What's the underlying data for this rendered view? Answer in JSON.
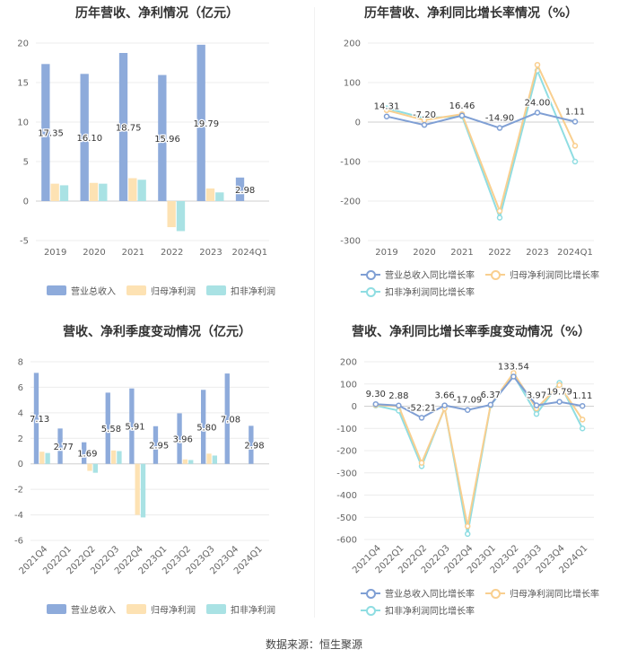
{
  "colors": {
    "revenue": "#8eabdb",
    "net_profit": "#fde2b3",
    "deducted_profit": "#a9e2e4",
    "revenue_line": "#7f9fd4",
    "net_line": "#f9cf8f",
    "deducted_line": "#8fdde2"
  },
  "source": "数据来源：恒生聚源",
  "chart_data": [
    {
      "type": "bar",
      "title": "历年营收、净利情况（亿元）",
      "categories": [
        "2019",
        "2020",
        "2021",
        "2022",
        "2023",
        "2024Q1"
      ],
      "ylim": [
        -5,
        20
      ],
      "yticks": [
        "20",
        "15",
        "10",
        "5",
        "0",
        "-5"
      ],
      "grid": true,
      "legend_position": "bottom",
      "series": [
        {
          "name": "营业总收入",
          "values": [
            17.35,
            16.1,
            18.75,
            15.96,
            19.79,
            2.98
          ],
          "labels": [
            "17.35",
            "16.10",
            "18.75",
            "15.96",
            "19.79",
            "2.98"
          ]
        },
        {
          "name": "归母净利润",
          "values": [
            2.2,
            2.3,
            2.9,
            -3.3,
            1.6,
            0
          ]
        },
        {
          "name": "扣非净利润",
          "values": [
            2.0,
            2.2,
            2.7,
            -3.8,
            1.1,
            0
          ]
        }
      ]
    },
    {
      "type": "line",
      "title": "历年营收、净利同比增长率情况（%）",
      "categories": [
        "2019",
        "2020",
        "2021",
        "2022",
        "2023",
        "2024Q1"
      ],
      "ylim": [
        -300,
        200
      ],
      "yticks": [
        "200",
        "100",
        "0",
        "-100",
        "-200",
        "-300"
      ],
      "grid": true,
      "legend_position": "bottom",
      "series": [
        {
          "name": "营业总收入同比增长率",
          "values": [
            14.31,
            -7.2,
            16.46,
            -14.9,
            24.0,
            1.11
          ],
          "labels": [
            "14.31",
            "-7.20",
            "16.46",
            "-14.90",
            "24.00",
            "1.11"
          ]
        },
        {
          "name": "归母净利润同比增长率",
          "values": [
            30,
            5,
            20,
            -225,
            145,
            -60
          ]
        },
        {
          "name": "扣非净利润同比增长率",
          "values": [
            35,
            10,
            15,
            -242,
            130,
            -100
          ]
        }
      ]
    },
    {
      "type": "bar",
      "title": "营收、净利季度变动情况（亿元）",
      "categories": [
        "2021Q4",
        "2022Q1",
        "2022Q2",
        "2022Q3",
        "2022Q4",
        "2023Q1",
        "2023Q2",
        "2023Q3",
        "2023Q4",
        "2024Q1"
      ],
      "ylim": [
        -6,
        8
      ],
      "yticks": [
        "8",
        "6",
        "4",
        "2",
        "0",
        "-2",
        "-4",
        "-6"
      ],
      "grid": true,
      "legend_position": "bottom",
      "series": [
        {
          "name": "营业总收入",
          "values": [
            7.13,
            2.77,
            1.69,
            5.58,
            5.91,
            2.95,
            3.96,
            5.8,
            7.08,
            2.98
          ],
          "labels": [
            "7.13",
            "2.77",
            "1.69",
            "5.58",
            "5.91",
            "2.95",
            "3.96",
            "5.80",
            "7.08",
            "2.98"
          ]
        },
        {
          "name": "归母净利润",
          "values": [
            0.95,
            0,
            -0.55,
            1.05,
            -4.0,
            0,
            0.35,
            0.8,
            0,
            0
          ]
        },
        {
          "name": "扣非净利润",
          "values": [
            0.85,
            0,
            -0.7,
            1.0,
            -4.2,
            0,
            0.3,
            0.65,
            0,
            0
          ]
        }
      ]
    },
    {
      "type": "line",
      "title": "营收、净利同比增长率季度变动情况（%）",
      "categories": [
        "2021Q4",
        "2022Q1",
        "2022Q2",
        "2022Q3",
        "2022Q4",
        "2023Q1",
        "2023Q2",
        "2023Q3",
        "2023Q4",
        "2024Q1"
      ],
      "ylim": [
        -600,
        200
      ],
      "yticks": [
        "200",
        "100",
        "0",
        "-100",
        "-200",
        "-300",
        "-400",
        "-500",
        "-600"
      ],
      "grid": true,
      "legend_position": "bottom",
      "series": [
        {
          "name": "营业总收入同比增长率",
          "values": [
            9.3,
            2.88,
            -52.21,
            3.66,
            -17.09,
            6.37,
            133.54,
            3.97,
            19.79,
            1.11
          ],
          "labels": [
            "9.30",
            "2.88",
            "-52.21",
            "3.66",
            "-17.09",
            "6.37",
            "133.54",
            "3.97",
            "19.79",
            "1.11"
          ]
        },
        {
          "name": "归母净利润同比增长率",
          "values": [
            5,
            0,
            -255,
            -10,
            -540,
            5,
            150,
            -10,
            95,
            -60
          ]
        },
        {
          "name": "扣非净利润同比增长率",
          "values": [
            3,
            -20,
            -270,
            -8,
            -575,
            3,
            140,
            -35,
            105,
            -100
          ]
        }
      ]
    }
  ]
}
